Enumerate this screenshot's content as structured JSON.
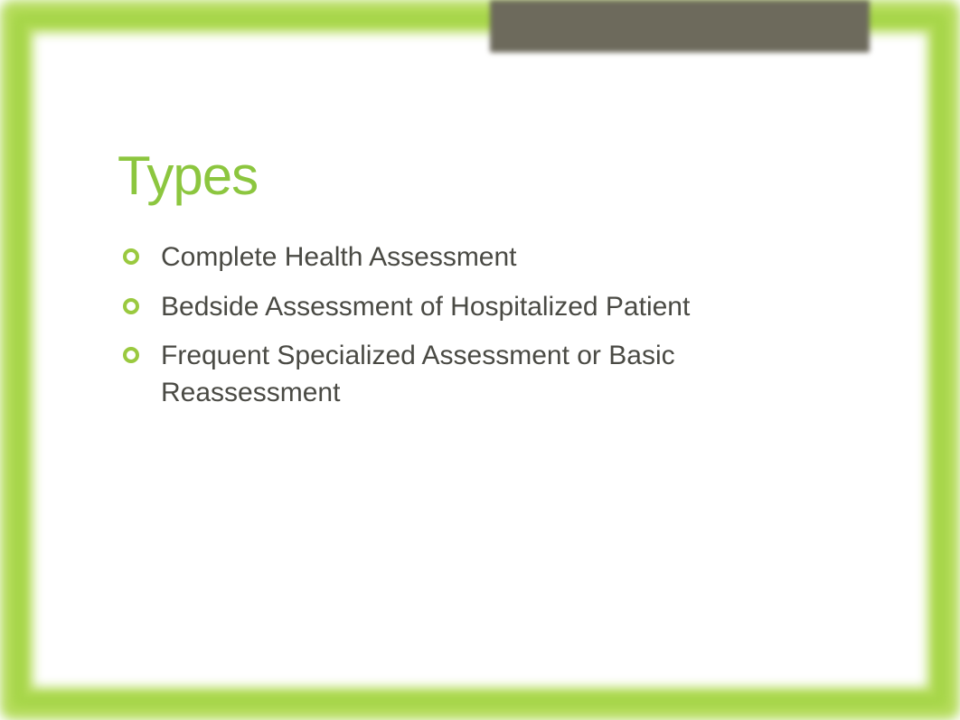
{
  "slide": {
    "title": "Types",
    "bullets": [
      "Complete Health Assessment",
      "Bedside Assessment of Hospitalized Patient",
      "Frequent Specialized Assessment or Basic Reassessment"
    ]
  },
  "style": {
    "border_outer_color": "#b4dc5a",
    "border_inner_color": "#a7d64a",
    "tab_color": "#6d6a5c",
    "background_color": "#ffffff",
    "title_color": "#8cc63f",
    "title_fontsize": 60,
    "body_color": "#4a4a44",
    "body_fontsize": 30,
    "bullet_ring_color": "#9ac93f",
    "bullet_ring_thickness": 4,
    "border_radius": 14,
    "blur_amount": 6
  }
}
